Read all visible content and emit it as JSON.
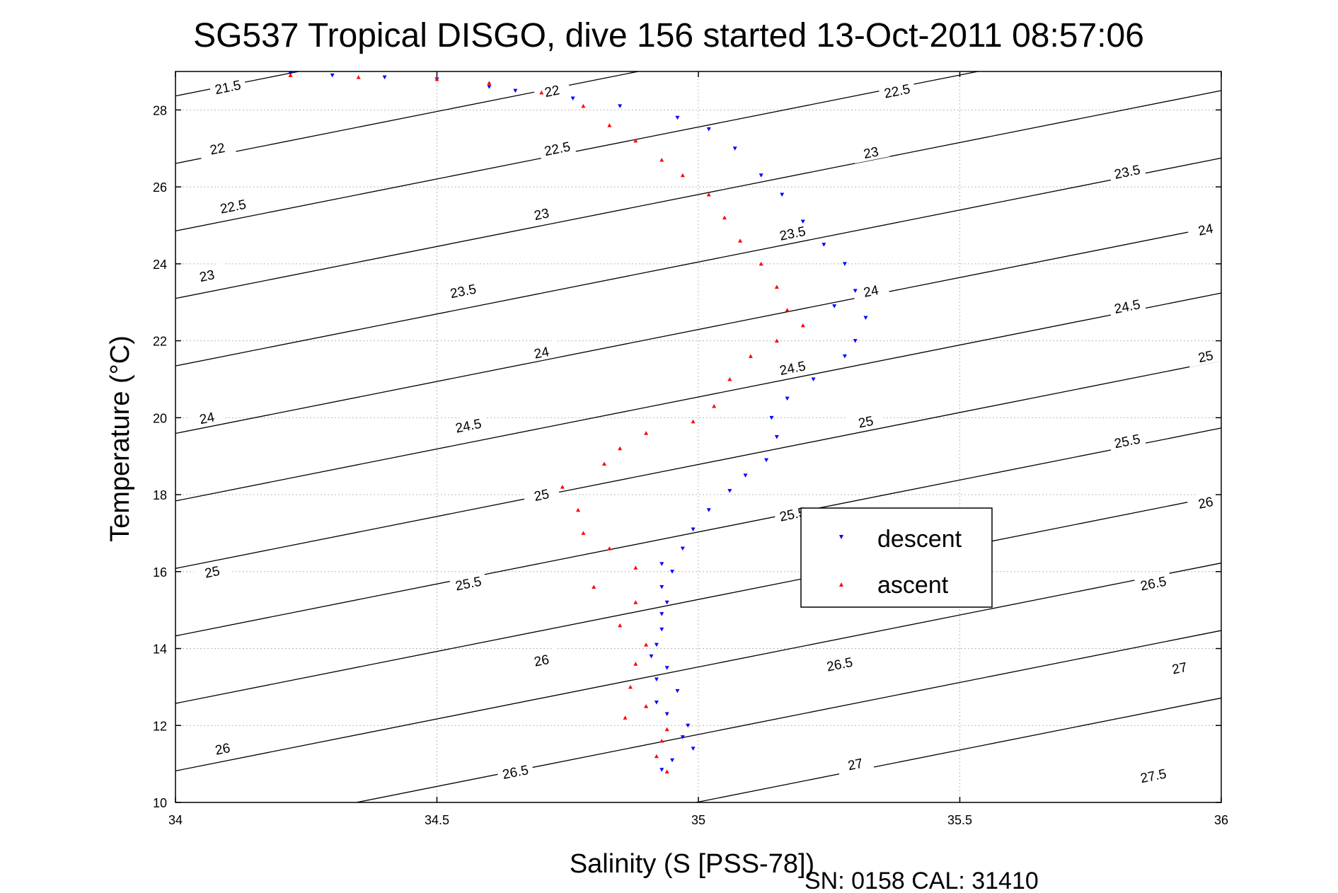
{
  "chart_data": {
    "type": "scatter",
    "title": "SG537 Tropical DISGO, dive 156 started 13-Oct-2011 08:57:06",
    "xlabel": "Salinity (S [PSS-78])",
    "ylabel": "Temperature (°C)",
    "xlim": [
      34,
      36
    ],
    "ylim": [
      10,
      29
    ],
    "xticks": [
      34,
      34.5,
      35,
      35.5,
      36
    ],
    "xtick_labels": [
      "34",
      "34.5",
      "35",
      "35.5",
      "36"
    ],
    "yticks": [
      10,
      12,
      14,
      16,
      18,
      20,
      22,
      24,
      26,
      28
    ],
    "ytick_labels": [
      "10",
      "12",
      "14",
      "16",
      "18",
      "20",
      "22",
      "24",
      "26",
      "28"
    ],
    "grid": true,
    "legend_position": "right-center",
    "density_contours": {
      "levels": [
        21.5,
        22,
        22.5,
        23,
        23.5,
        24,
        24.5,
        25,
        25.5,
        26,
        26.5,
        27,
        27.5
      ],
      "color": "#000000",
      "labels": [
        {
          "text": "21.5",
          "s": 34.1,
          "t": 28.6
        },
        {
          "text": "22",
          "s": 34.08,
          "t": 27
        },
        {
          "text": "22",
          "s": 34.72,
          "t": 28.5
        },
        {
          "text": "22.5",
          "s": 34.11,
          "t": 25.5
        },
        {
          "text": "22.5",
          "s": 34.73,
          "t": 27
        },
        {
          "text": "22.5",
          "s": 35.38,
          "t": 28.5
        },
        {
          "text": "23",
          "s": 34.06,
          "t": 23.7
        },
        {
          "text": "23",
          "s": 34.7,
          "t": 25.3
        },
        {
          "text": "23",
          "s": 35.33,
          "t": 26.9
        },
        {
          "text": "23.5",
          "s": 34.55,
          "t": 23.3
        },
        {
          "text": "23.5",
          "s": 35.18,
          "t": 24.8
        },
        {
          "text": "23.5",
          "s": 35.82,
          "t": 26.4
        },
        {
          "text": "24",
          "s": 34.06,
          "t": 20
        },
        {
          "text": "24",
          "s": 34.7,
          "t": 21.7
        },
        {
          "text": "24",
          "s": 35.33,
          "t": 23.3
        },
        {
          "text": "24",
          "s": 35.97,
          "t": 24.9
        },
        {
          "text": "24.5",
          "s": 34.56,
          "t": 19.8
        },
        {
          "text": "24.5",
          "s": 35.18,
          "t": 21.3
        },
        {
          "text": "24.5",
          "s": 35.82,
          "t": 22.9
        },
        {
          "text": "25",
          "s": 34.07,
          "t": 16
        },
        {
          "text": "25",
          "s": 34.7,
          "t": 18
        },
        {
          "text": "25",
          "s": 35.32,
          "t": 19.9
        },
        {
          "text": "25",
          "s": 35.97,
          "t": 21.6
        },
        {
          "text": "25.5",
          "s": 34.56,
          "t": 15.7
        },
        {
          "text": "25.5",
          "s": 35.18,
          "t": 17.5
        },
        {
          "text": "25.5",
          "s": 35.82,
          "t": 19.4
        },
        {
          "text": "26",
          "s": 34.09,
          "t": 11.4
        },
        {
          "text": "26",
          "s": 34.7,
          "t": 13.7
        },
        {
          "text": "26",
          "s": 35.97,
          "t": 17.8
        },
        {
          "text": "26.5",
          "s": 34.65,
          "t": 10.8
        },
        {
          "text": "26.5",
          "s": 35.27,
          "t": 13.6
        },
        {
          "text": "26.5",
          "s": 35.87,
          "t": 15.7
        },
        {
          "text": "27",
          "s": 35.3,
          "t": 11
        },
        {
          "text": "27",
          "s": 35.92,
          "t": 13.5
        },
        {
          "text": "27.5",
          "s": 35.87,
          "t": 10.7
        }
      ]
    },
    "series": [
      {
        "name": "descent",
        "color": "#0000ff",
        "marker": "triangle-down",
        "points": [
          [
            34.22,
            28.95
          ],
          [
            34.3,
            28.9
          ],
          [
            34.4,
            28.85
          ],
          [
            34.5,
            28.8
          ],
          [
            34.6,
            28.6
          ],
          [
            34.65,
            28.5
          ],
          [
            34.76,
            28.3
          ],
          [
            34.85,
            28.1
          ],
          [
            34.96,
            27.8
          ],
          [
            35.02,
            27.5
          ],
          [
            35.07,
            27.0
          ],
          [
            35.12,
            26.3
          ],
          [
            35.16,
            25.8
          ],
          [
            35.2,
            25.1
          ],
          [
            35.24,
            24.5
          ],
          [
            35.28,
            24.0
          ],
          [
            35.3,
            23.3
          ],
          [
            35.26,
            22.9
          ],
          [
            35.32,
            22.6
          ],
          [
            35.3,
            22.0
          ],
          [
            35.28,
            21.6
          ],
          [
            35.22,
            21.0
          ],
          [
            35.17,
            20.5
          ],
          [
            35.14,
            20.0
          ],
          [
            35.15,
            19.5
          ],
          [
            35.13,
            18.9
          ],
          [
            35.09,
            18.5
          ],
          [
            35.06,
            18.1
          ],
          [
            35.02,
            17.6
          ],
          [
            34.99,
            17.1
          ],
          [
            34.97,
            16.6
          ],
          [
            34.93,
            16.2
          ],
          [
            34.95,
            16.0
          ],
          [
            34.93,
            15.6
          ],
          [
            34.94,
            15.2
          ],
          [
            34.93,
            14.9
          ],
          [
            34.93,
            14.5
          ],
          [
            34.92,
            14.1
          ],
          [
            34.91,
            13.8
          ],
          [
            34.94,
            13.5
          ],
          [
            34.92,
            13.2
          ],
          [
            34.96,
            12.9
          ],
          [
            34.92,
            12.6
          ],
          [
            34.94,
            12.3
          ],
          [
            34.98,
            12.0
          ],
          [
            34.97,
            11.7
          ],
          [
            34.99,
            11.4
          ],
          [
            34.95,
            11.1
          ],
          [
            34.93,
            10.85
          ]
        ]
      },
      {
        "name": "ascent",
        "color": "#ff0000",
        "marker": "triangle-up",
        "points": [
          [
            34.22,
            28.9
          ],
          [
            34.35,
            28.85
          ],
          [
            34.5,
            28.8
          ],
          [
            34.6,
            28.7
          ],
          [
            34.7,
            28.45
          ],
          [
            34.78,
            28.1
          ],
          [
            34.83,
            27.6
          ],
          [
            34.88,
            27.2
          ],
          [
            34.93,
            26.7
          ],
          [
            34.97,
            26.3
          ],
          [
            35.02,
            25.8
          ],
          [
            35.05,
            25.2
          ],
          [
            35.08,
            24.6
          ],
          [
            35.12,
            24.0
          ],
          [
            35.15,
            23.4
          ],
          [
            35.17,
            22.8
          ],
          [
            35.2,
            22.4
          ],
          [
            35.15,
            22.0
          ],
          [
            35.1,
            21.6
          ],
          [
            35.06,
            21.0
          ],
          [
            35.03,
            20.3
          ],
          [
            34.99,
            19.9
          ],
          [
            34.9,
            19.6
          ],
          [
            34.85,
            19.2
          ],
          [
            34.82,
            18.8
          ],
          [
            34.74,
            18.2
          ],
          [
            34.77,
            17.6
          ],
          [
            34.78,
            17.0
          ],
          [
            34.83,
            16.6
          ],
          [
            34.88,
            16.1
          ],
          [
            34.8,
            15.6
          ],
          [
            34.88,
            15.2
          ],
          [
            34.85,
            14.6
          ],
          [
            34.9,
            14.1
          ],
          [
            34.88,
            13.6
          ],
          [
            34.87,
            13.0
          ],
          [
            34.9,
            12.5
          ],
          [
            34.86,
            12.2
          ],
          [
            34.94,
            11.9
          ],
          [
            34.93,
            11.6
          ],
          [
            34.92,
            11.2
          ],
          [
            34.94,
            10.8
          ]
        ]
      }
    ],
    "legend": {
      "entries": [
        "descent",
        "ascent"
      ]
    }
  },
  "footer": {
    "serial": "SN: 0158  CAL: 31410"
  }
}
